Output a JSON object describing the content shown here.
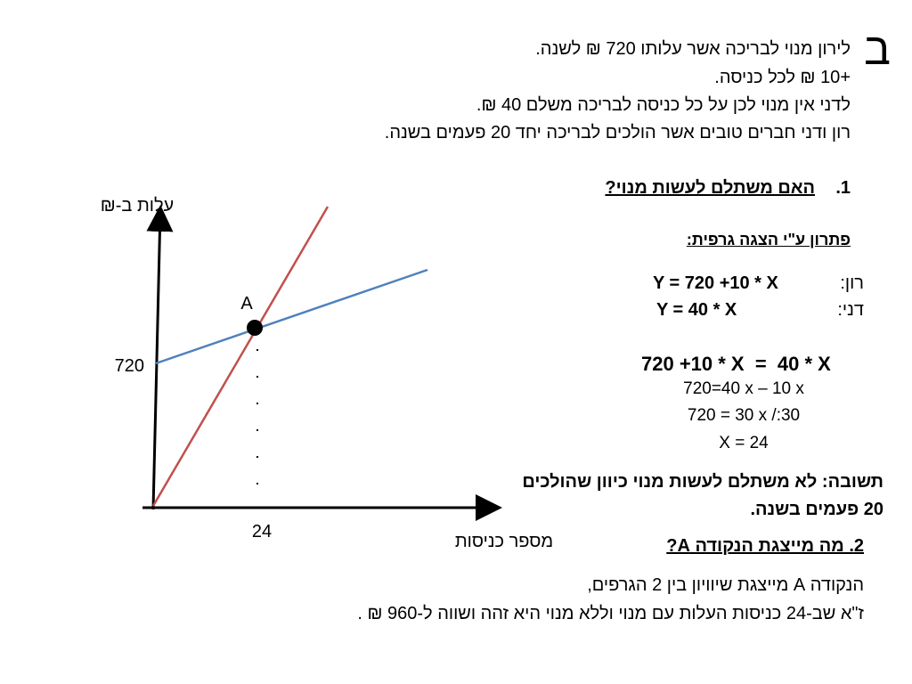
{
  "header": {
    "letter": "ב"
  },
  "intro": [
    "לירון מנוי לבריכה אשר עלותו 720 ₪ לשנה.",
    "+10 ₪ לכל כניסה.",
    "לדני אין מנוי לכן על כל כניסה לבריכה משלם 40 ₪.",
    "רון ודני חברים טובים אשר הולכים לבריכה יחד 20 פעמים בשנה."
  ],
  "question1": {
    "number": "1.",
    "text": "האם משתלם לעשות מנוי?"
  },
  "solution": {
    "title": "פתרון ע\"י הצגה גרפית:",
    "equations": [
      {
        "name": "רון:",
        "formula": "Y =  720 +10 * X"
      },
      {
        "name": "דני:",
        "formula": "Y = 40 * X"
      }
    ],
    "equality": "720 +10 * X  =  40 * X",
    "steps": [
      "720=40 x – 10 x",
      "720 = 30 x /:30",
      "X = 24"
    ],
    "answer": [
      "תשובה: לא משתלם לעשות מנוי כיוון שהולכים",
      "20 פעמים בשנה."
    ]
  },
  "question2": {
    "title": "2. מה מייצגת הנקודה A?",
    "answer": [
      "הנקודה  A מייצגת שיוויון בין 2 הגרפים,",
      "ז\"א שב-24 כניסות העלות עם מנוי וללא מנוי היא זהה ושווה ל-960 ₪ ."
    ]
  },
  "graph": {
    "y_label": "עלות ב-₪",
    "x_label": "מספר כניסות",
    "y_value": "720",
    "x_value": "24",
    "point": "A"
  }
}
